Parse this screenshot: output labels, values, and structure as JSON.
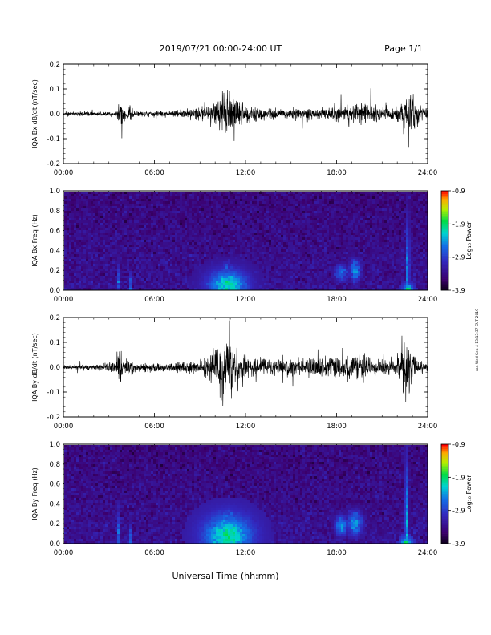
{
  "header": {
    "title": "2019/07/21  00:00-24:00 UT",
    "page": "Page 1/1"
  },
  "side_note": "ran Wed Sep 4 13:13:37 CUT 2019",
  "xlabel": "Universal Time (hh:mm)",
  "x_ticks": [
    "00:00",
    "06:00",
    "12:00",
    "18:00",
    "24:00"
  ],
  "colors": {
    "trace": "#000000",
    "spectrogram_background": "#3a1f9c"
  },
  "chart_data": [
    {
      "id": "bx-waveform",
      "type": "line",
      "ylabel": "IQA Bx dB/dt (nT/sec)",
      "ylim": [
        -0.2,
        0.2
      ],
      "y_ticks": [
        "0.2",
        "0.1",
        "0.0",
        "-0.1",
        "-0.2"
      ],
      "y_tick_values": [
        0.2,
        0.1,
        0.0,
        -0.1,
        -0.2
      ],
      "xlim_hours": [
        0,
        24
      ],
      "noise_floor": 0.01,
      "envelope": [
        {
          "t": 0.0,
          "amp": 0.012
        },
        {
          "t": 3.4,
          "amp": 0.013
        },
        {
          "t": 3.6,
          "amp": 0.05
        },
        {
          "t": 3.8,
          "amp": 0.09
        },
        {
          "t": 4.2,
          "amp": 0.03
        },
        {
          "t": 4.4,
          "amp": 0.08
        },
        {
          "t": 4.7,
          "amp": 0.02
        },
        {
          "t": 6.5,
          "amp": 0.02
        },
        {
          "t": 8.0,
          "amp": 0.03
        },
        {
          "t": 9.5,
          "amp": 0.05
        },
        {
          "t": 10.2,
          "amp": 0.1
        },
        {
          "t": 10.7,
          "amp": 0.15
        },
        {
          "t": 11.2,
          "amp": 0.12
        },
        {
          "t": 12.0,
          "amp": 0.06
        },
        {
          "t": 13.5,
          "amp": 0.035
        },
        {
          "t": 15.5,
          "amp": 0.04
        },
        {
          "t": 17.5,
          "amp": 0.05
        },
        {
          "t": 18.5,
          "amp": 0.07
        },
        {
          "t": 19.6,
          "amp": 0.08
        },
        {
          "t": 20.5,
          "amp": 0.05
        },
        {
          "t": 21.5,
          "amp": 0.04
        },
        {
          "t": 22.4,
          "amp": 0.06
        },
        {
          "t": 22.7,
          "amp": 0.2
        },
        {
          "t": 23.0,
          "amp": 0.14
        },
        {
          "t": 23.5,
          "amp": 0.04
        },
        {
          "t": 24.0,
          "amp": 0.03
        }
      ]
    },
    {
      "id": "bx-spectrogram",
      "type": "heatmap",
      "ylabel": "IQA Bx Freq (Hz)",
      "ylim": [
        0.0,
        1.0
      ],
      "y_ticks": [
        "1.0",
        "0.8",
        "0.6",
        "0.4",
        "0.2",
        "0.0"
      ],
      "y_tick_values": [
        1.0,
        0.8,
        0.6,
        0.4,
        0.2,
        0.0
      ],
      "xlim_hours": [
        0,
        24
      ],
      "colorbar": {
        "label": "Log₁₀ Power",
        "range": [
          -3.9,
          -0.9
        ],
        "ticks": [
          "-0.9",
          "-1.9",
          "-2.9",
          "-3.9"
        ],
        "tick_values": [
          -0.9,
          -1.9,
          -2.9,
          -3.9
        ]
      },
      "background_level": -3.3,
      "features": [
        {
          "t": 3.6,
          "f": 0.05,
          "dt": 0.1,
          "df": 0.35,
          "level": -2.7
        },
        {
          "t": 4.4,
          "f": 0.03,
          "dt": 0.08,
          "df": 0.2,
          "level": -2.6
        },
        {
          "t": 10.8,
          "f": 0.05,
          "dt": 1.3,
          "df": 0.15,
          "level": -2.1
        },
        {
          "t": 10.8,
          "f": 0.22,
          "dt": 0.7,
          "df": 0.15,
          "level": -2.9
        },
        {
          "t": 18.3,
          "f": 0.18,
          "dt": 0.6,
          "df": 0.12,
          "level": -2.6
        },
        {
          "t": 19.2,
          "f": 0.2,
          "dt": 0.5,
          "df": 0.15,
          "level": -2.5
        },
        {
          "t": 22.7,
          "f": 0.15,
          "dt": 0.12,
          "df": 0.6,
          "level": -2.3
        },
        {
          "t": 22.7,
          "f": 0.0,
          "dt": 0.3,
          "df": 0.05,
          "level": -1.9
        }
      ]
    },
    {
      "id": "by-waveform",
      "type": "line",
      "ylabel": "IQA By dB/dt (nT/sec)",
      "ylim": [
        -0.2,
        0.2
      ],
      "y_ticks": [
        "0.2",
        "0.1",
        "0.0",
        "-0.1",
        "-0.2"
      ],
      "y_tick_values": [
        0.2,
        0.1,
        0.0,
        -0.1,
        -0.2
      ],
      "xlim_hours": [
        0,
        24
      ],
      "noise_floor": 0.012,
      "envelope": [
        {
          "t": 0.0,
          "amp": 0.014
        },
        {
          "t": 2.5,
          "amp": 0.02
        },
        {
          "t": 3.5,
          "amp": 0.05
        },
        {
          "t": 3.7,
          "amp": 0.12
        },
        {
          "t": 4.1,
          "amp": 0.05
        },
        {
          "t": 4.4,
          "amp": 0.1
        },
        {
          "t": 4.7,
          "amp": 0.03
        },
        {
          "t": 6.5,
          "amp": 0.03
        },
        {
          "t": 8.5,
          "amp": 0.04
        },
        {
          "t": 9.7,
          "amp": 0.08
        },
        {
          "t": 10.4,
          "amp": 0.2
        },
        {
          "t": 11.0,
          "amp": 0.2
        },
        {
          "t": 11.6,
          "amp": 0.12
        },
        {
          "t": 12.5,
          "amp": 0.06
        },
        {
          "t": 14.0,
          "amp": 0.06
        },
        {
          "t": 15.5,
          "amp": 0.05
        },
        {
          "t": 17.5,
          "amp": 0.08
        },
        {
          "t": 18.5,
          "amp": 0.1
        },
        {
          "t": 19.3,
          "amp": 0.09
        },
        {
          "t": 20.5,
          "amp": 0.06
        },
        {
          "t": 21.8,
          "amp": 0.06
        },
        {
          "t": 22.5,
          "amp": 0.2
        },
        {
          "t": 22.9,
          "amp": 0.2
        },
        {
          "t": 23.3,
          "amp": 0.06
        },
        {
          "t": 24.0,
          "amp": 0.03
        }
      ]
    },
    {
      "id": "by-spectrogram",
      "type": "heatmap",
      "ylabel": "IQA By Freq (Hz)",
      "ylim": [
        0.0,
        1.0
      ],
      "y_ticks": [
        "1.0",
        "0.8",
        "0.6",
        "0.4",
        "0.2",
        "0.0"
      ],
      "y_tick_values": [
        1.0,
        0.8,
        0.6,
        0.4,
        0.2,
        0.0
      ],
      "xlim_hours": [
        0,
        24
      ],
      "colorbar": {
        "label": "Log₁₀ Power",
        "range": [
          -3.9,
          -0.9
        ],
        "ticks": [
          "-0.9",
          "-1.9",
          "-2.9",
          "-3.9"
        ],
        "tick_values": [
          -0.9,
          -1.9,
          -2.9,
          -3.9
        ]
      },
      "background_level": -3.3,
      "features": [
        {
          "t": 3.6,
          "f": 0.05,
          "dt": 0.1,
          "df": 0.4,
          "level": -2.6
        },
        {
          "t": 4.4,
          "f": 0.03,
          "dt": 0.08,
          "df": 0.2,
          "level": -2.5
        },
        {
          "t": 10.8,
          "f": 0.08,
          "dt": 1.5,
          "df": 0.2,
          "level": -2.0
        },
        {
          "t": 10.9,
          "f": 0.3,
          "dt": 0.6,
          "df": 0.15,
          "level": -2.8
        },
        {
          "t": 18.3,
          "f": 0.18,
          "dt": 0.5,
          "df": 0.12,
          "level": -2.4
        },
        {
          "t": 19.2,
          "f": 0.2,
          "dt": 0.6,
          "df": 0.15,
          "level": -2.4
        },
        {
          "t": 22.6,
          "f": 0.15,
          "dt": 0.12,
          "df": 0.7,
          "level": -2.2
        },
        {
          "t": 22.6,
          "f": 0.0,
          "dt": 0.3,
          "df": 0.05,
          "level": -1.8
        }
      ]
    }
  ]
}
